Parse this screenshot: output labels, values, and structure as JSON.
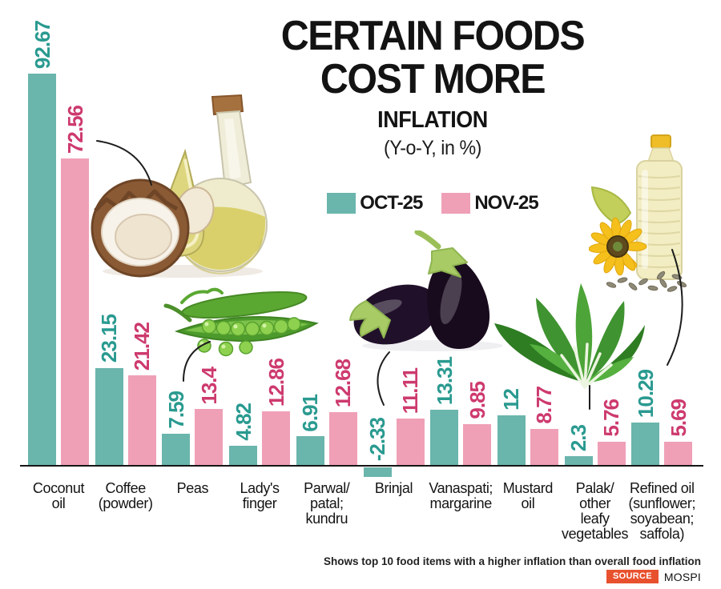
{
  "title": {
    "line1": "CERTAIN FOODS",
    "line2": "COST MORE",
    "subtitle": "INFLATION",
    "unit": "(Y-o-Y, in %)"
  },
  "legend": [
    {
      "label": "OCT-25",
      "color": "#6ab5ac"
    },
    {
      "label": "NOV-25",
      "color": "#efa0b7"
    }
  ],
  "colors": {
    "oct_bar": "#6ab5ac",
    "nov_bar": "#efa0b7",
    "oct_value_text": "#2a9a90",
    "nov_value_text": "#cd3a6e",
    "axis": "#161616",
    "source_badge": "#e8512e"
  },
  "chart_data": {
    "type": "bar",
    "title": "CERTAIN FOODS COST MORE",
    "subtitle": "INFLATION (Y-o-Y, in %)",
    "categories": [
      "Coconut oil",
      "Coffee (powder)",
      "Peas",
      "Lady's finger",
      "Parwal/patal; kundru",
      "Brinjal",
      "Vanaspati; margarine",
      "Mustard oil",
      "Palak/other leafy vegetables",
      "Refined oil (sunflower; soyabean; saffola)"
    ],
    "category_lines": [
      [
        "Coconut",
        "oil"
      ],
      [
        "Coffee",
        "(powder)"
      ],
      [
        "Peas"
      ],
      [
        "Lady's",
        "finger"
      ],
      [
        "Parwal/",
        "patal;",
        "kundru"
      ],
      [
        "Brinjal"
      ],
      [
        "Vanaspati;",
        "margarine"
      ],
      [
        "Mustard",
        "oil"
      ],
      [
        "Palak/",
        "other",
        "leafy",
        "vegetables"
      ],
      [
        "Refined oil",
        "(sunflower;",
        "soyabean;",
        "saffola)"
      ]
    ],
    "series": [
      {
        "name": "OCT-25",
        "color": "#6ab5ac",
        "values": [
          92.67,
          23.15,
          7.59,
          4.82,
          6.91,
          -2.33,
          13.31,
          12,
          2.3,
          10.29
        ]
      },
      {
        "name": "NOV-25",
        "color": "#efa0b7",
        "values": [
          72.56,
          21.42,
          13.4,
          12.86,
          12.68,
          11.11,
          9.85,
          8.77,
          5.76,
          5.69
        ]
      }
    ],
    "ylabel": "Inflation (Y-o-Y, in %)",
    "xlabel": "",
    "ylim": [
      -5,
      100
    ],
    "grid": false,
    "legend_position": "top-center",
    "bar_value_labels": "rotated-90-above-bars"
  },
  "footer": {
    "note": "Shows top 10 food items with a higher inflation than overall food inflation",
    "source_label": "SOURCE",
    "source_value": "MOSPI"
  }
}
